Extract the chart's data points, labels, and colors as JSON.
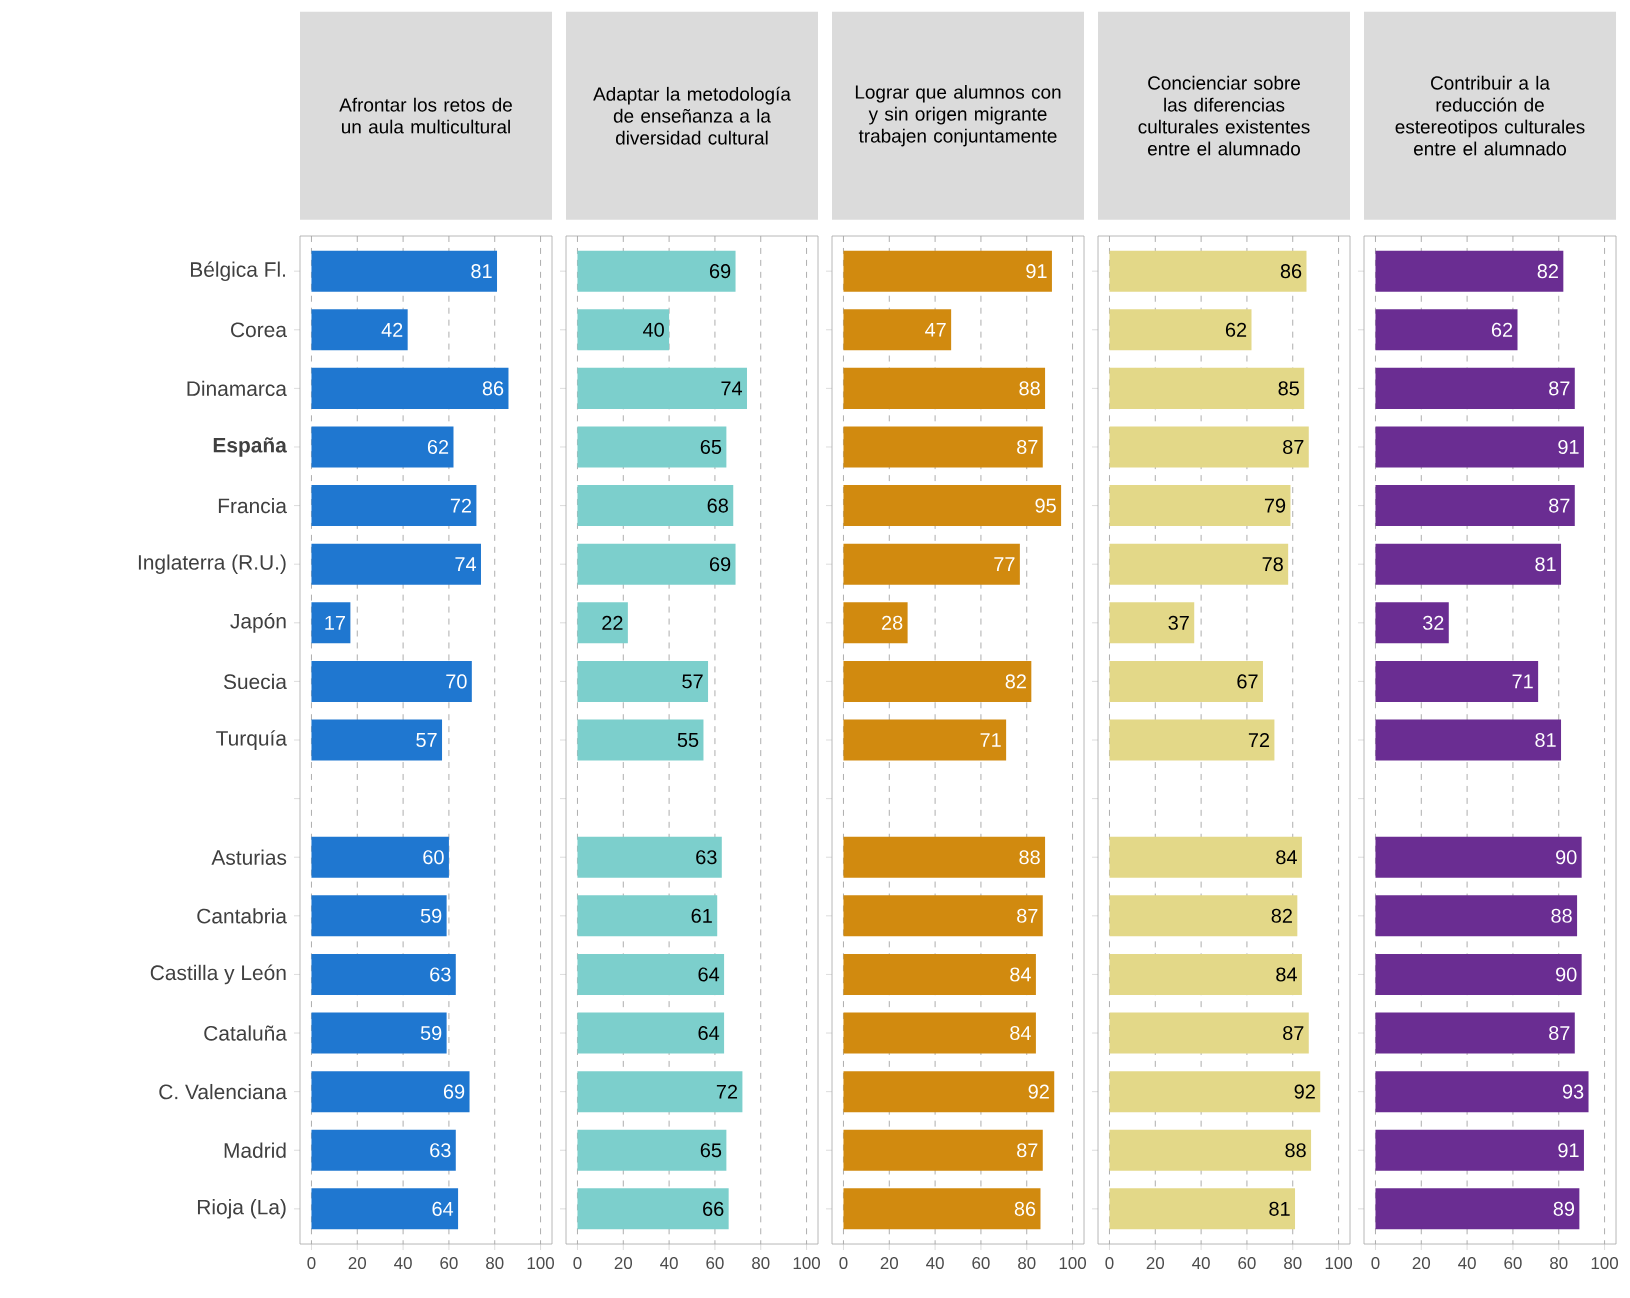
{
  "chart_data": [
    {
      "type": "bar",
      "orientation": "horizontal",
      "title": "Afrontar los retos de un aula multicultural",
      "categories": [
        "Bélgica Fl.",
        "Corea",
        "Dinamarca",
        "**España**",
        "Francia",
        "Inglaterra (R.U.)",
        "Japón",
        "Suecia",
        "Turquía",
        null,
        "Asturias",
        "Cantabria",
        "Castilla y León",
        "Cataluña",
        "C. Valenciana",
        "Madrid",
        "Rioja (La)"
      ],
      "values": [
        81,
        42,
        86,
        62,
        72,
        74,
        17,
        70,
        57,
        null,
        60,
        59,
        63,
        59,
        69,
        63,
        64
      ],
      "color": "#1f77d0",
      "xlim": [
        -5,
        105
      ],
      "xticks": [
        0,
        20,
        40,
        60,
        80,
        100
      ],
      "grid": "x",
      "data_labels": true
    },
    {
      "type": "bar",
      "orientation": "horizontal",
      "title": "Adaptar la metodología de enseñanza a la diversidad cultural",
      "categories": [
        null,
        null,
        null,
        null,
        null,
        null,
        null,
        null,
        null,
        null,
        null,
        null,
        null,
        null,
        null,
        null,
        null
      ],
      "values": [
        69,
        40,
        74,
        65,
        68,
        69,
        22,
        57,
        55,
        null,
        63,
        61,
        64,
        64,
        72,
        65,
        66
      ],
      "color": "#7ccfcc",
      "xlim": [
        -5,
        105
      ],
      "xticks": [
        0,
        20,
        40,
        60,
        80,
        100
      ],
      "grid": "x",
      "data_labels": true,
      "tick_labels": "x"
    },
    {
      "type": "bar",
      "orientation": "horizontal",
      "title": "Lograr que alumnos con y sin origen migrante trabajen conjuntamente",
      "categories": [
        null,
        null,
        null,
        null,
        null,
        null,
        null,
        null,
        null,
        null,
        null,
        null,
        null,
        null,
        null,
        null,
        null
      ],
      "values": [
        91,
        47,
        88,
        87,
        95,
        77,
        28,
        82,
        71,
        null,
        88,
        87,
        84,
        84,
        92,
        87,
        86
      ],
      "color": "#d18a0f",
      "xlim": [
        -5,
        105
      ],
      "xticks": [
        0,
        20,
        40,
        60,
        80,
        100
      ],
      "grid": "x",
      "data_labels": true,
      "tick_labels": "x"
    },
    {
      "type": "bar",
      "orientation": "horizontal",
      "title": "Concienciar sobre las diferencias culturales existentes entre el alumnado",
      "categories": [
        null,
        null,
        null,
        null,
        null,
        null,
        null,
        null,
        null,
        null,
        null,
        null,
        null,
        null,
        null,
        null,
        null
      ],
      "values": [
        86,
        62,
        85,
        87,
        79,
        78,
        37,
        67,
        72,
        null,
        84,
        82,
        84,
        87,
        92,
        88,
        81
      ],
      "color": "#e3d888",
      "xlim": [
        -5,
        105
      ],
      "xticks": [
        0,
        20,
        40,
        60,
        80,
        100
      ],
      "grid": "x",
      "data_labels": true,
      "tick_labels": "x"
    },
    {
      "type": "bar",
      "orientation": "horizontal",
      "title": "Contribuir a la reducción de estereotipos culturales entre el alumnado",
      "categories": [
        null,
        null,
        null,
        null,
        null,
        null,
        null,
        null,
        null,
        null,
        null,
        null,
        null,
        null,
        null,
        null,
        null
      ],
      "values": [
        82,
        62,
        87,
        91,
        87,
        81,
        32,
        71,
        81,
        null,
        90,
        88,
        90,
        87,
        93,
        91,
        89
      ],
      "color": "#6a2d92",
      "xlim": [
        -5,
        105
      ],
      "xticks": [
        0,
        20,
        40,
        60,
        80,
        100
      ],
      "grid": "x",
      "data_labels": true,
      "tick_labels": "x"
    }
  ]
}
